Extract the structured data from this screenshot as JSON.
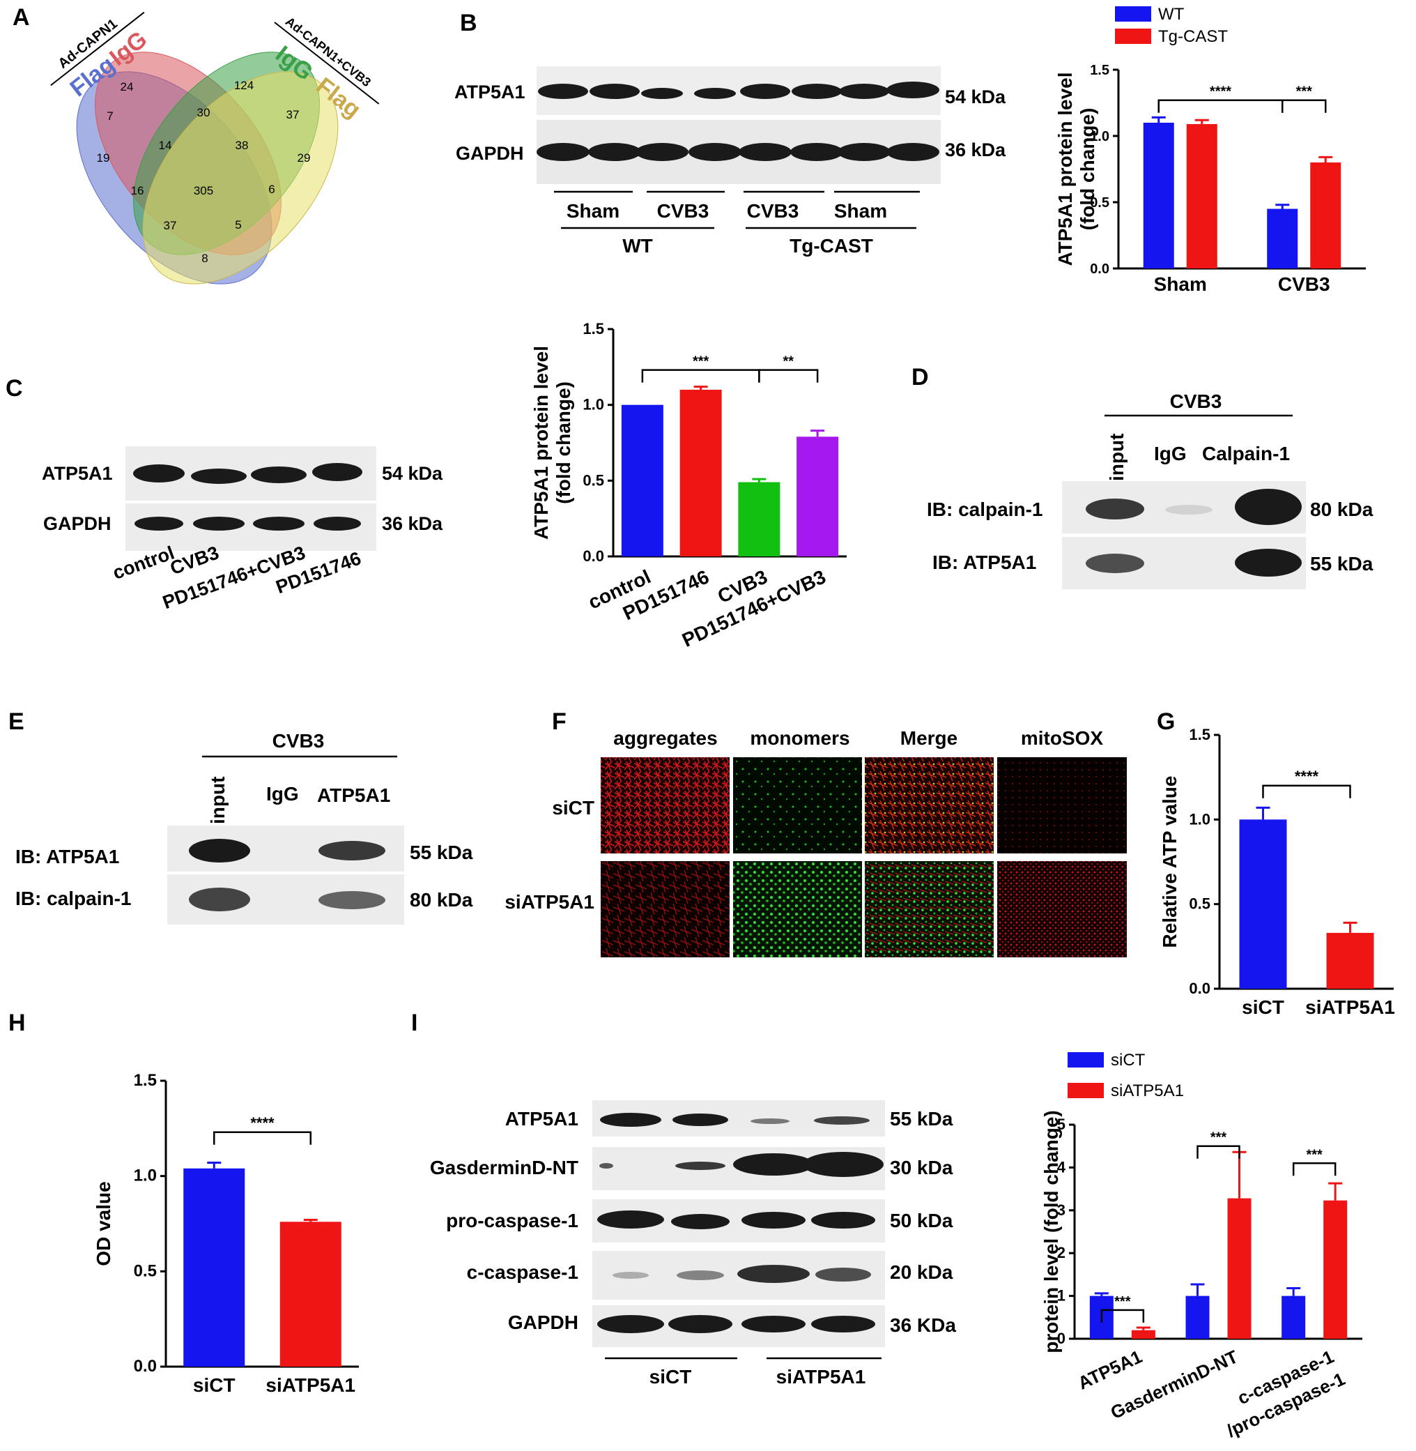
{
  "panels": {
    "A": {
      "label": "A",
      "sets": [
        {
          "name": "Flag",
          "group": "Ad-CAPN1",
          "color": "#5b6fcf"
        },
        {
          "name": "IgG",
          "group": "Ad-CAPN1",
          "color": "#d9595f"
        },
        {
          "name": "IgG",
          "group": "Ad-CAPN1+CVB3",
          "color": "#3aa047"
        },
        {
          "name": "Flag",
          "group": "Ad-CAPN1+CVB3",
          "color": "#c9a94a"
        }
      ],
      "group_left": "Ad-CAPN1",
      "group_right": "Ad-CAPN1+CVB3",
      "counts": [
        "24",
        "124",
        "7",
        "30",
        "37",
        "19",
        "14",
        "38",
        "29",
        "16",
        "305",
        "6",
        "37",
        "5",
        "8"
      ]
    },
    "B": {
      "label": "B",
      "blot_labels": [
        "ATP5A1",
        "GAPDH"
      ],
      "sizes": [
        "54 kDa",
        "36 kDa"
      ],
      "lanes": [
        "Sham",
        "CVB3",
        "CVB3",
        "Sham"
      ],
      "groups": [
        "WT",
        "Tg-CAST"
      ]
    },
    "C": {
      "label": "C",
      "blot_labels": [
        "ATP5A1",
        "GAPDH"
      ],
      "sizes": [
        "54 kDa",
        "36 kDa"
      ],
      "lanes": [
        "control",
        "CVB3",
        "PD151746+CVB3",
        "PD151746"
      ]
    },
    "D": {
      "label": "D",
      "header": "CVB3",
      "cols": [
        "input",
        "IgG",
        "Calpain-1"
      ],
      "rows": [
        "IB: calpain-1",
        "IB: ATP5A1"
      ],
      "sizes": [
        "80 kDa",
        "55 kDa"
      ]
    },
    "E": {
      "label": "E",
      "header": "CVB3",
      "cols": [
        "input",
        "IgG",
        "ATP5A1"
      ],
      "rows": [
        "IB: ATP5A1",
        "IB: calpain-1"
      ],
      "sizes": [
        "55 kDa",
        "80 kDa"
      ]
    },
    "F": {
      "label": "F",
      "cols": [
        "aggregates",
        "monomers",
        "Merge",
        "mitoSOX"
      ],
      "rows": [
        "siCT",
        "siATP5A1"
      ]
    },
    "I": {
      "label": "I",
      "blot_labels": [
        "ATP5A1",
        "GasderminD-NT",
        "pro-caspase-1",
        "c-caspase-1",
        "GAPDH"
      ],
      "sizes": [
        "55 kDa",
        "30 kDa",
        "50 kDa",
        "20 kDa",
        "36 KDa"
      ],
      "groups": [
        "siCT",
        "siATP5A1"
      ]
    }
  },
  "chart_data": [
    {
      "id": "B-chart",
      "type": "bar",
      "categories": [
        "Sham",
        "CVB3"
      ],
      "series": [
        {
          "name": "WT",
          "values": [
            1.1,
            0.45
          ],
          "errors": [
            0.04,
            0.03
          ],
          "color": "#1515f0"
        },
        {
          "name": "Tg-CAST",
          "values": [
            1.09,
            0.8
          ],
          "errors": [
            0.03,
            0.04
          ],
          "color": "#f01515"
        }
      ],
      "ylabel": "ATP5A1 protein level (fold change)",
      "ylim": [
        0,
        1.5
      ],
      "yticks": [
        "0.0",
        "0.5",
        "1.0",
        "1.5"
      ],
      "legend": "top-left",
      "significance": [
        "****",
        "***"
      ]
    },
    {
      "id": "C-chart",
      "type": "bar",
      "categories": [
        "control",
        "PD151746",
        "CVB3",
        "PD151746+CVB3"
      ],
      "values": [
        1.0,
        1.1,
        0.49,
        0.79
      ],
      "errors": [
        0,
        0.02,
        0.02,
        0.04
      ],
      "colors": [
        "#1515f0",
        "#f01515",
        "#11c011",
        "#a518f0"
      ],
      "ylabel": "ATP5A1 protein level (fold change)",
      "ylim": [
        0,
        1.5
      ],
      "yticks": [
        "0.0",
        "0.5",
        "1.0",
        "1.5"
      ],
      "significance": [
        "***",
        "**"
      ]
    },
    {
      "id": "G-chart",
      "type": "bar",
      "categories": [
        "siCT",
        "siATP5A1"
      ],
      "values": [
        1.0,
        0.33
      ],
      "errors": [
        0.07,
        0.06
      ],
      "colors": [
        "#1515f0",
        "#f01515"
      ],
      "ylabel": "Relative ATP value",
      "ylim": [
        0,
        1.5
      ],
      "yticks": [
        "0.0",
        "0.5",
        "1.0",
        "1.5"
      ],
      "significance": [
        "****"
      ]
    },
    {
      "id": "H-chart",
      "type": "bar",
      "categories": [
        "siCT",
        "siATP5A1"
      ],
      "values": [
        1.04,
        0.76
      ],
      "errors": [
        0.03,
        0.01
      ],
      "colors": [
        "#1515f0",
        "#f01515"
      ],
      "ylabel": "OD value",
      "ylim": [
        0,
        1.5
      ],
      "yticks": [
        "0.0",
        "0.5",
        "1.0",
        "1.5"
      ],
      "significance": [
        "****"
      ]
    },
    {
      "id": "I-chart",
      "type": "bar",
      "categories": [
        "ATP5A1",
        "GasderminD-NT",
        "c-caspase-1 /pro-caspase-1"
      ],
      "series": [
        {
          "name": "siCT",
          "values": [
            1.0,
            1.0,
            1.0
          ],
          "errors": [
            0.06,
            0.27,
            0.18
          ],
          "color": "#1515f0"
        },
        {
          "name": "siATP5A1",
          "values": [
            0.2,
            3.28,
            3.23
          ],
          "errors": [
            0.06,
            1.08,
            0.4
          ],
          "color": "#f01515"
        }
      ],
      "ylabel": "protein level (fold change)",
      "ylim": [
        0,
        5
      ],
      "yticks": [
        "0",
        "1",
        "2",
        "3",
        "4",
        "5"
      ],
      "legend": "top-left",
      "significance": [
        "***",
        "***",
        "***"
      ]
    }
  ]
}
